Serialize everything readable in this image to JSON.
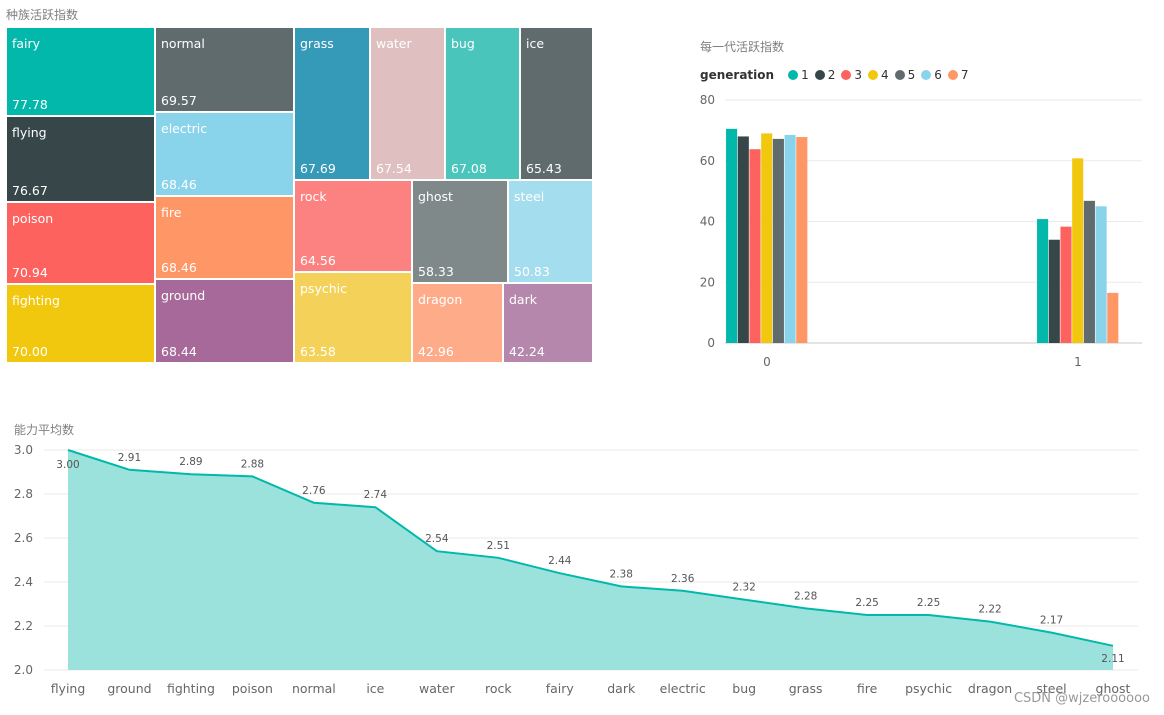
{
  "treemap": {
    "title": "种族活跃指数",
    "tiles": [
      {
        "label": "fairy",
        "value": "77.78",
        "color": "#01B8AA"
      },
      {
        "label": "flying",
        "value": "76.67",
        "color": "#374649"
      },
      {
        "label": "poison",
        "value": "70.94",
        "color": "#FD625E"
      },
      {
        "label": "fighting",
        "value": "70.00",
        "color": "#F2C80F"
      },
      {
        "label": "normal",
        "value": "69.57",
        "color": "#5F6B6D"
      },
      {
        "label": "electric",
        "value": "68.46",
        "color": "#8AD4EB"
      },
      {
        "label": "fire",
        "value": "68.46",
        "color": "#FE9666"
      },
      {
        "label": "ground",
        "value": "68.44",
        "color": "#A66999"
      },
      {
        "label": "grass",
        "value": "67.69",
        "color": "#3599B8"
      },
      {
        "label": "water",
        "value": "67.54",
        "color": "#DFBFBF"
      },
      {
        "label": "bug",
        "value": "67.08",
        "color": "#4AC5BB"
      },
      {
        "label": "ice",
        "value": "65.43",
        "color": "#5F6B6D"
      },
      {
        "label": "rock",
        "value": "64.56",
        "color": "#FB8281"
      },
      {
        "label": "ghost",
        "value": "58.33",
        "color": "#7F898A"
      },
      {
        "label": "steel",
        "value": "50.83",
        "color": "#A4DDEE"
      },
      {
        "label": "psychic",
        "value": "63.58",
        "color": "#F4D25A"
      },
      {
        "label": "dragon",
        "value": "42.96",
        "color": "#FDAB89"
      },
      {
        "label": "dark",
        "value": "42.24",
        "color": "#B687AC"
      }
    ]
  },
  "bar": {
    "title": "每一代活跃指数",
    "legend_title": "generation",
    "legend": [
      {
        "label": "1",
        "color": "#01B8AA"
      },
      {
        "label": "2",
        "color": "#374649"
      },
      {
        "label": "3",
        "color": "#FD625E"
      },
      {
        "label": "4",
        "color": "#F2C80F"
      },
      {
        "label": "5",
        "color": "#5F6B6D"
      },
      {
        "label": "6",
        "color": "#8AD4EB"
      },
      {
        "label": "7",
        "color": "#FE9666"
      }
    ]
  },
  "area": {
    "title": "能力平均数"
  },
  "watermark": "CSDN @wjzeroooooo",
  "chart_data": [
    {
      "type": "treemap",
      "title": "种族活跃指数",
      "categories": [
        "fairy",
        "flying",
        "poison",
        "fighting",
        "normal",
        "electric",
        "fire",
        "ground",
        "grass",
        "water",
        "bug",
        "ice",
        "rock",
        "ghost",
        "steel",
        "psychic",
        "dragon",
        "dark"
      ],
      "values": [
        77.78,
        76.67,
        70.94,
        70.0,
        69.57,
        68.46,
        68.46,
        68.44,
        67.69,
        67.54,
        67.08,
        65.43,
        64.56,
        58.33,
        50.83,
        63.58,
        42.96,
        42.24
      ]
    },
    {
      "type": "bar",
      "title": "每一代活跃指数",
      "categories": [
        "0",
        "1"
      ],
      "series": [
        {
          "name": "1",
          "values": [
            70.5,
            40.8
          ],
          "color": "#01B8AA"
        },
        {
          "name": "2",
          "values": [
            68.0,
            34.0
          ],
          "color": "#374649"
        },
        {
          "name": "3",
          "values": [
            63.8,
            38.3
          ],
          "color": "#FD625E"
        },
        {
          "name": "4",
          "values": [
            69.0,
            60.8
          ],
          "color": "#F2C80F"
        },
        {
          "name": "5",
          "values": [
            67.2,
            46.8
          ],
          "color": "#5F6B6D"
        },
        {
          "name": "6",
          "values": [
            68.5,
            45.0
          ],
          "color": "#8AD4EB"
        },
        {
          "name": "7",
          "values": [
            67.8,
            16.5
          ],
          "color": "#FE9666"
        }
      ],
      "ylim": [
        0,
        80
      ],
      "yticks": [
        0,
        20,
        40,
        60,
        80
      ],
      "grid": true,
      "legend": "top-left"
    },
    {
      "type": "area",
      "title": "能力平均数",
      "categories": [
        "flying",
        "ground",
        "fighting",
        "poison",
        "normal",
        "ice",
        "water",
        "rock",
        "fairy",
        "dark",
        "electric",
        "bug",
        "grass",
        "fire",
        "psychic",
        "dragon",
        "steel",
        "ghost"
      ],
      "values": [
        3.0,
        2.91,
        2.89,
        2.88,
        2.76,
        2.74,
        2.54,
        2.51,
        2.44,
        2.38,
        2.36,
        2.32,
        2.28,
        2.25,
        2.25,
        2.22,
        2.17,
        2.11
      ],
      "labels": [
        "3.00",
        "2.91",
        "2.89",
        "2.88",
        "2.76",
        "2.74",
        "2.54",
        "2.51",
        "2.44",
        "2.38",
        "2.36",
        "2.32",
        "2.28",
        "2.25",
        "2.25",
        "2.22",
        "2.17",
        "2.11"
      ],
      "ylim": [
        2.0,
        3.0
      ],
      "yticks": [
        "2.0",
        "2.2",
        "2.4",
        "2.6",
        "2.8",
        "3.0"
      ],
      "color": "#01B8AA",
      "grid": true
    }
  ]
}
